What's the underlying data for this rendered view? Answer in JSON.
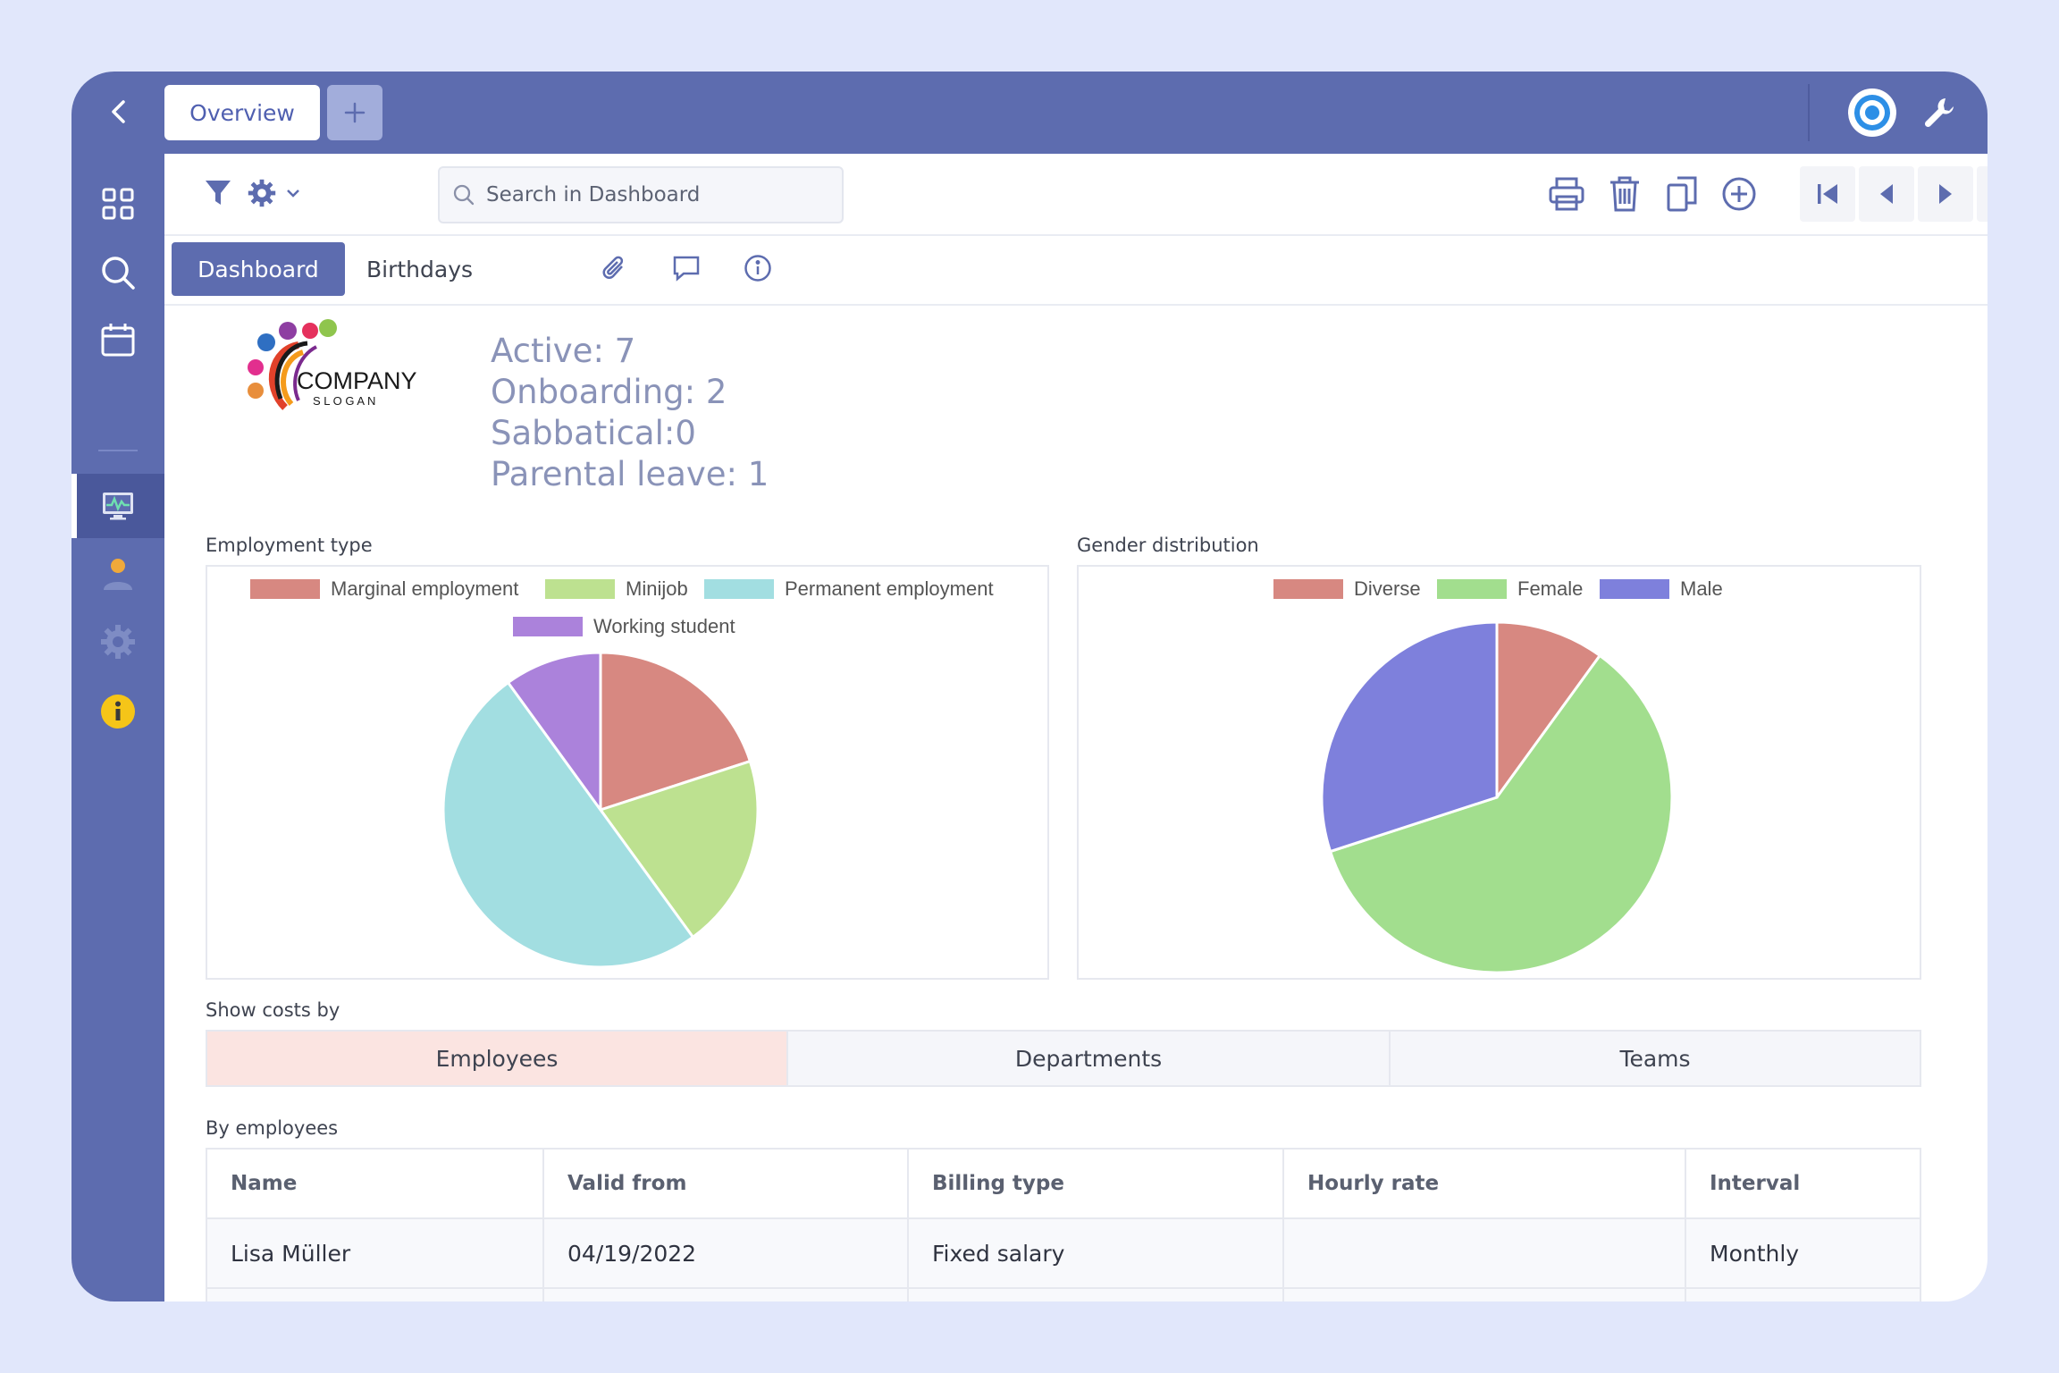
{
  "topbar": {
    "tab_overview": "Overview",
    "add_tab_symbol": "+"
  },
  "toolbar": {
    "search_placeholder": "Search in Dashboard"
  },
  "subtabs": {
    "dashboard": "Dashboard",
    "birthdays": "Birthdays"
  },
  "logo": {
    "company": "COMPANY",
    "slogan": "S L O G A N"
  },
  "stats": {
    "active": "Active: 7",
    "onboarding": "Onboarding: 2",
    "sabbatical": "Sabbatical:0",
    "parental_leave": "Parental leave: 1"
  },
  "colors": {
    "brand": "#5d6caf",
    "marginal": "#d78881",
    "minijob": "#bde190",
    "permanent": "#a2dee1",
    "working_student": "#ab82db",
    "diverse": "#d78881",
    "female": "#a2de8e",
    "male": "#7e80dc"
  },
  "charts": {
    "employment_title": "Employment type",
    "gender_title": "Gender distribution"
  },
  "chart_data": [
    {
      "type": "pie",
      "title": "Employment type",
      "categories": [
        "Marginal employment",
        "Minijob",
        "Permanent employment",
        "Working student"
      ],
      "values": [
        2,
        2,
        5,
        1
      ]
    },
    {
      "type": "pie",
      "title": "Gender distribution",
      "categories": [
        "Diverse",
        "Female",
        "Male"
      ],
      "values": [
        1,
        6,
        3
      ]
    }
  ],
  "costs": {
    "label": "Show costs by",
    "tabs": [
      "Employees",
      "Departments",
      "Teams"
    ],
    "active_tab": "Employees",
    "table_label": "By employees",
    "columns": [
      "Name",
      "Valid from",
      "Billing type",
      "Hourly rate",
      "Interval"
    ],
    "rows": [
      [
        "Lisa Müller",
        "04/19/2022",
        "Fixed salary",
        "",
        "Monthly"
      ]
    ]
  }
}
